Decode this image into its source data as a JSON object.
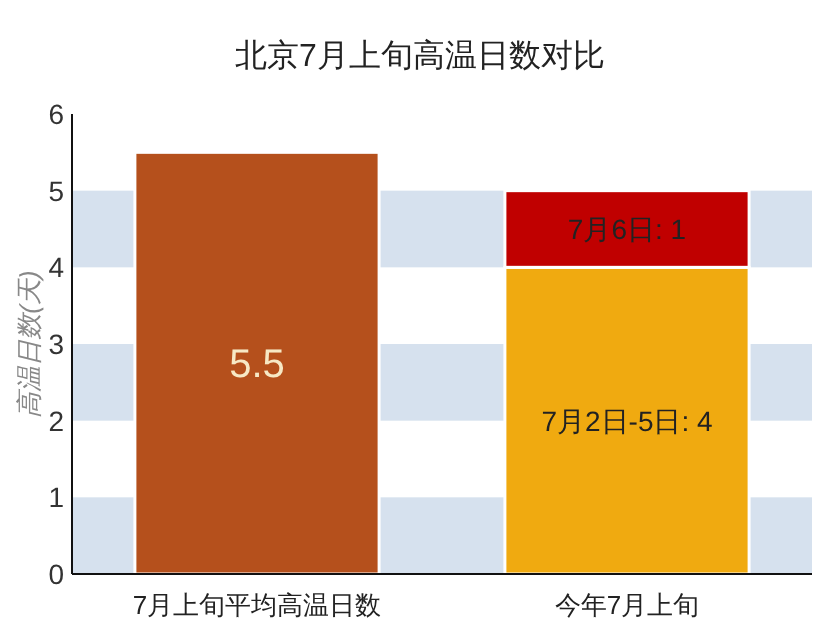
{
  "chart_data": {
    "type": "bar",
    "title": "北京7月上旬高温日数对比",
    "ylabel": "高温日数(天)",
    "categories": [
      "7月上旬平均高温日数",
      "今年7月上旬"
    ],
    "stacked": true,
    "series": [
      {
        "colors": [
          "#b5501c",
          "#f0aa10"
        ],
        "values": [
          5.5,
          4
        ],
        "value_labels": [
          "5.5",
          "7月2日-5日: 4"
        ]
      },
      {
        "color": "#c00000",
        "values": [
          null,
          1
        ],
        "value_labels": [
          null,
          "7月6日: 1"
        ]
      }
    ],
    "ylim": [
      0,
      6
    ],
    "yticks": [
      0,
      1,
      2,
      3,
      4,
      5,
      6
    ],
    "bands": [
      {
        "axis": "y",
        "from": 0,
        "to": 1,
        "color": "#d6e1ee"
      },
      {
        "axis": "y",
        "from": 2,
        "to": 3,
        "color": "#d6e1ee"
      },
      {
        "axis": "y",
        "from": 4,
        "to": 5,
        "color": "#d6e1ee"
      }
    ],
    "grid": false
  }
}
